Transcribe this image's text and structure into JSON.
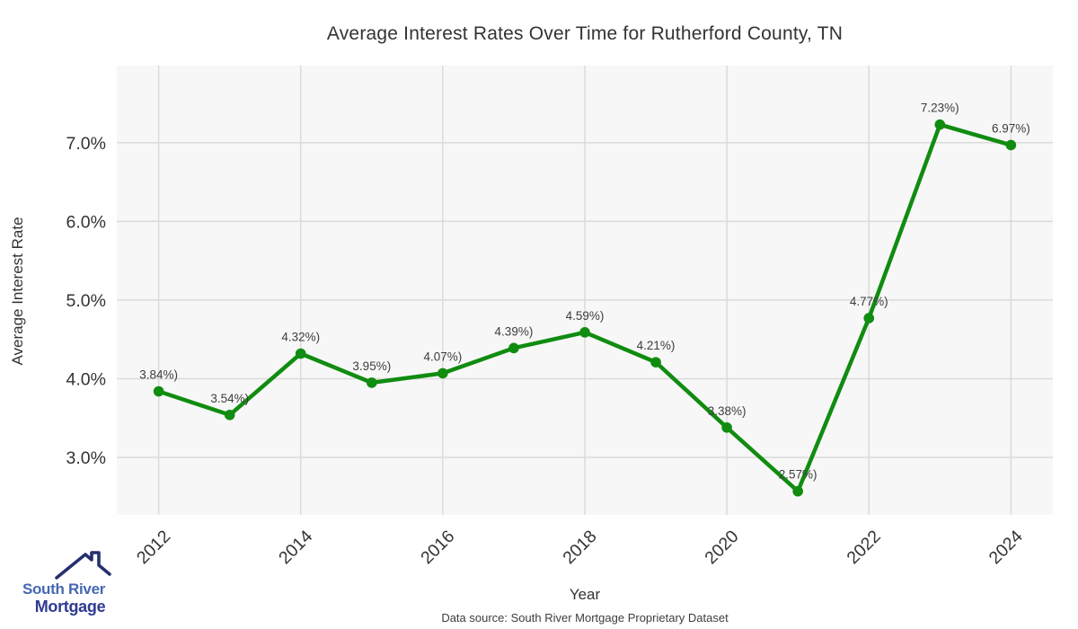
{
  "page": {
    "title": "Average Interest Rates Over Time for Rutherford County, TN",
    "source_note": "Data source: South River Mortgage Proprietary Dataset"
  },
  "logo": {
    "line1": "South River",
    "line2": "Mortgage",
    "line1_color": "#4568b1",
    "line2_color": "#2e3a92",
    "icon_color": "#25306e"
  },
  "chart_data": {
    "type": "line",
    "title": "Average Interest Rates Over Time for Rutherford County, TN",
    "xlabel": "Year",
    "ylabel": "Average Interest Rate",
    "x": [
      2012,
      2013,
      2014,
      2015,
      2016,
      2017,
      2018,
      2019,
      2020,
      2021,
      2022,
      2023,
      2024
    ],
    "values": [
      3.84,
      3.54,
      4.32,
      3.95,
      4.07,
      4.39,
      4.59,
      4.21,
      3.38,
      2.57,
      4.77,
      7.23,
      6.97
    ],
    "point_labels": [
      "3.84%)",
      "3.54%)",
      "4.32%)",
      "3.95%)",
      "4.07%)",
      "4.39%)",
      "4.59%)",
      "4.21%)",
      "3.38%)",
      "2.57%)",
      "4.77%)",
      "7.23%)",
      "6.97%)"
    ],
    "x_ticks": [
      2012,
      2014,
      2016,
      2018,
      2020,
      2022,
      2024
    ],
    "y_ticks": [
      {
        "value": 3,
        "label": "3.0%"
      },
      {
        "value": 4,
        "label": "4.0%"
      },
      {
        "value": 5,
        "label": "5.0%"
      },
      {
        "value": 6,
        "label": "6.0%"
      },
      {
        "value": 7,
        "label": "7.0%"
      }
    ],
    "xlim": [
      2011.41,
      2024.59
    ],
    "ylim": [
      2.27,
      7.98
    ],
    "grid": true,
    "legend": "none",
    "line_color": "#108c10",
    "marker_color": "#108c10",
    "plot_bg": "#f7f7f7",
    "grid_color": "#d9d9d9",
    "tick_color": "#333333",
    "point_label_color": "#3d3d3d"
  }
}
